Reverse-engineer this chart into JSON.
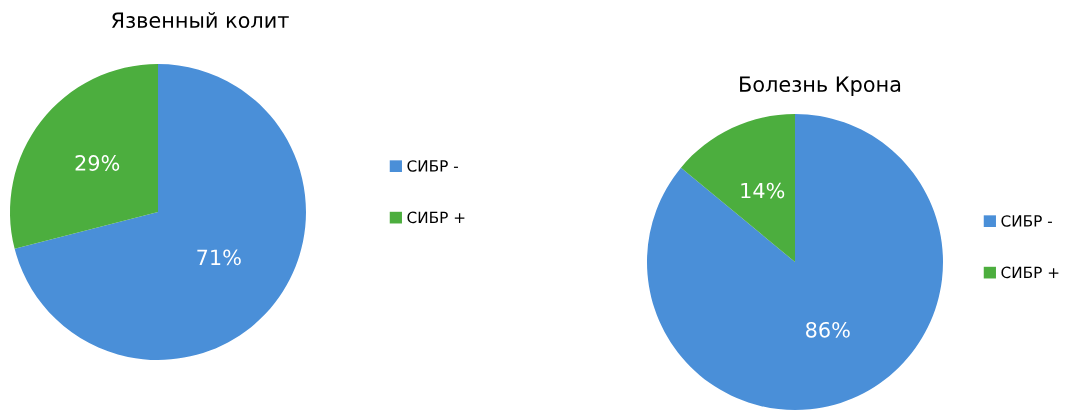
{
  "chart_data": [
    {
      "type": "pie",
      "title": "Язвенный колит",
      "categories": [
        "СИБР -",
        "СИБР +"
      ],
      "values": [
        71,
        29
      ],
      "colors": [
        "#4a8fd8",
        "#4cae3e"
      ],
      "value_labels": [
        "71%",
        "29%"
      ],
      "legend": "right"
    },
    {
      "type": "pie",
      "title": "Болезнь Крона",
      "categories": [
        "СИБР -",
        "СИБР +"
      ],
      "values": [
        86,
        14
      ],
      "colors": [
        "#4a8fd8",
        "#4cae3e"
      ],
      "value_labels": [
        "86%",
        "14%"
      ],
      "legend": "right"
    }
  ]
}
